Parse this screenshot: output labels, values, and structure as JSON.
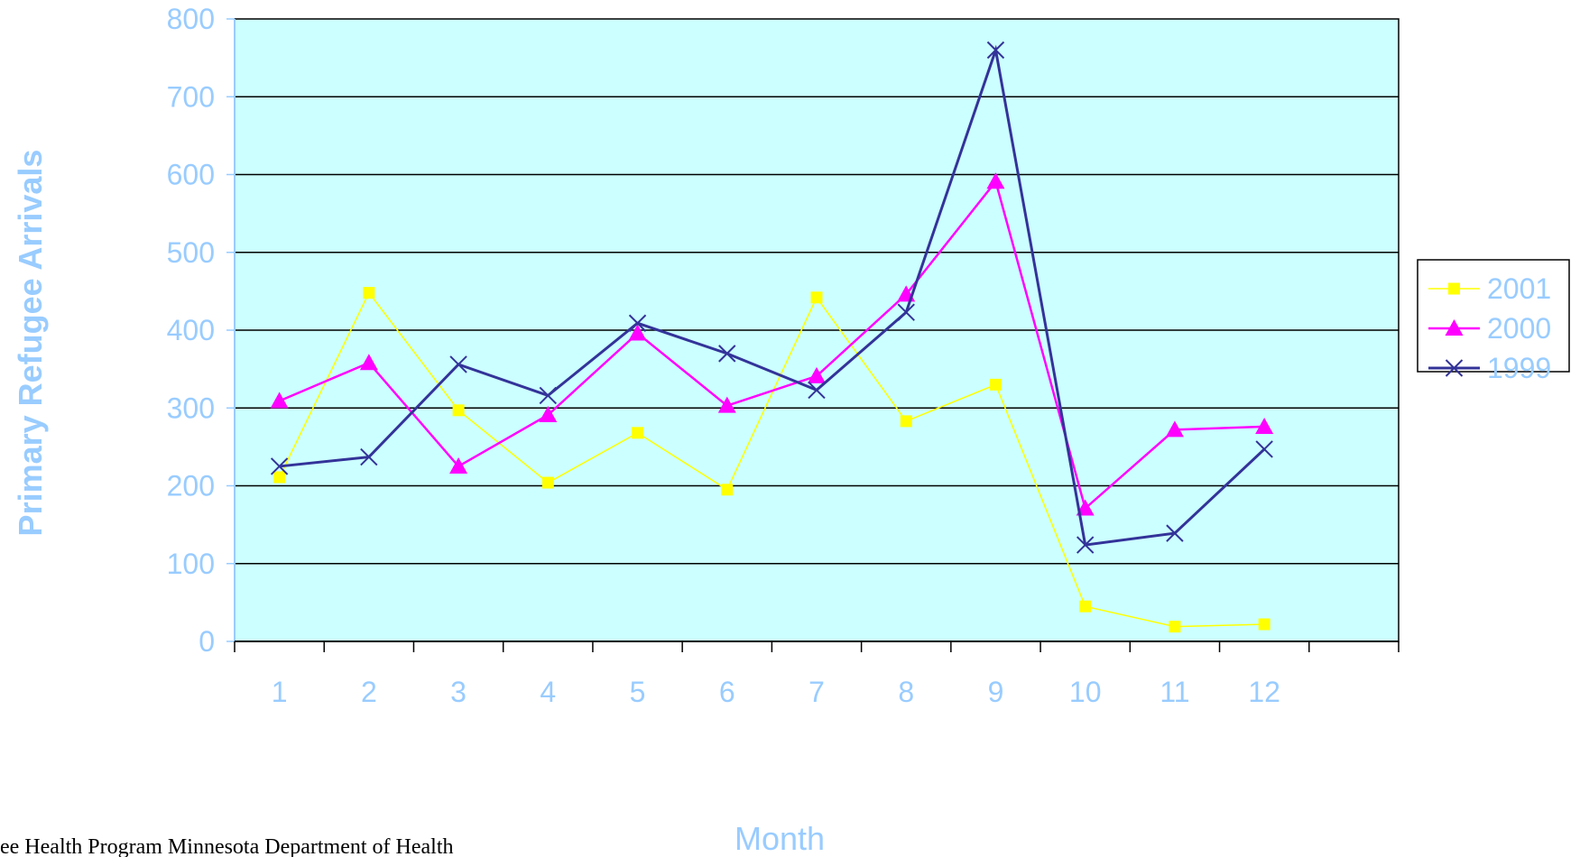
{
  "chart_data": {
    "type": "line",
    "title": "",
    "xlabel": "Month",
    "ylabel": "Primary Refugee Arrivals",
    "categories": [
      "1",
      "2",
      "3",
      "4",
      "5",
      "6",
      "7",
      "8",
      "9",
      "10",
      "11",
      "12"
    ],
    "ylim": [
      0,
      800
    ],
    "yticks": [
      "0",
      "100",
      "200",
      "300",
      "400",
      "500",
      "600",
      "700",
      "800"
    ],
    "grid": true,
    "legend_position": "right",
    "plot_background": "#ccffff",
    "series": [
      {
        "name": "2001",
        "color": "#ffff00",
        "marker": "square",
        "values": [
          211,
          448,
          297,
          204,
          268,
          195,
          442,
          283,
          330,
          45,
          19,
          22
        ]
      },
      {
        "name": "2000",
        "color": "#ff00ff",
        "marker": "triangle",
        "values": [
          309,
          358,
          225,
          291,
          396,
          303,
          341,
          446,
          591,
          171,
          272,
          276
        ]
      },
      {
        "name": "1999",
        "color": "#333399",
        "marker": "x",
        "values": [
          225,
          237,
          356,
          316,
          409,
          370,
          323,
          423,
          760,
          124,
          139,
          247
        ]
      }
    ]
  },
  "footnote": "ee Health Program Minnesota Department of Health"
}
